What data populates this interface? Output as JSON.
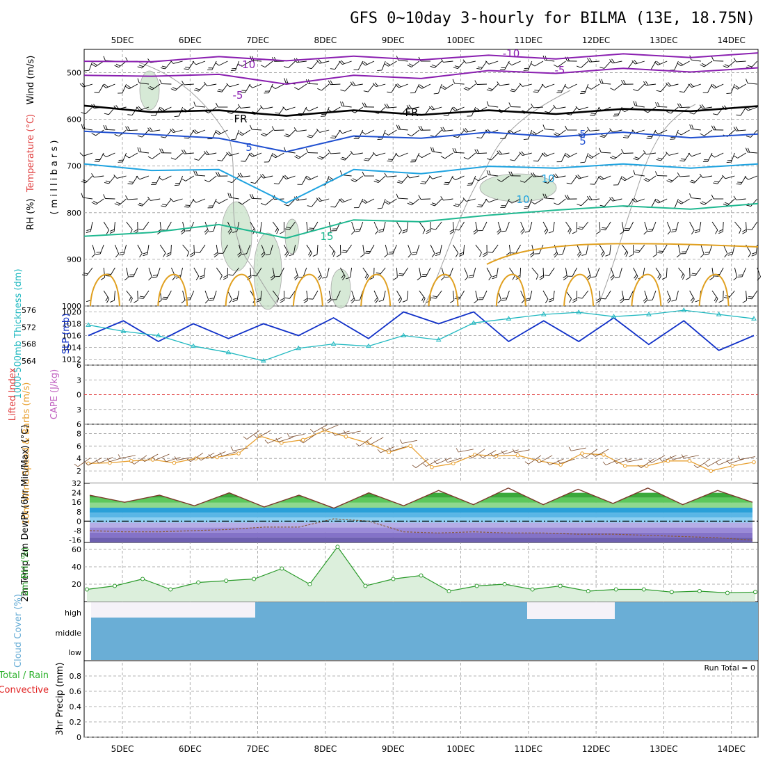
{
  "title": "GFS 0~10day 3-hourly for BILMA (13E, 18.75N)",
  "dates": [
    "5DEC",
    "6DEC",
    "7DEC",
    "8DEC",
    "9DEC",
    "10DEC",
    "11DEC",
    "12DEC",
    "13DEC",
    "14DEC"
  ],
  "colors": {
    "wind_barb": "#000000",
    "temp_m10": "#8a1fb0",
    "temp_m5": "#8a1fb0",
    "temp_fr": "#000000",
    "temp_5": "#1f4fd0",
    "temp_10": "#1fa3e0",
    "temp_15": "#1fb890",
    "temp_warm": "#e0a020",
    "rh_shade": "#cfe6cf",
    "slp": "#1030c8",
    "thickness": "#20b8c0",
    "lifted_index": "#e04040",
    "wind_speed": "#e8a030",
    "rh2m": "#2a9a2a",
    "cloud": "#6aaed6",
    "precip_total": "#2ab02a",
    "precip_conv": "#e02020"
  },
  "chart_data": [
    {
      "type": "line",
      "panel": "upper-air",
      "ylabel_parts": [
        "RH (%)",
        "Temperature (°C)",
        "Wind (m/s)",
        "( m i l l i b a r s )"
      ],
      "y_ticks": [
        "500",
        "600",
        "700",
        "800",
        "900",
        "1000"
      ],
      "ylim": [
        450,
        1000
      ],
      "y_inverted": true,
      "contour_labels": [
        "-10",
        "-10",
        "-5",
        "-5",
        "FR",
        "FR",
        "5",
        "5",
        "5",
        "10",
        "10",
        "15"
      ],
      "series": [
        {
          "name": "-10",
          "level": [
            480,
            472,
            470,
            470,
            469,
            468,
            467,
            466,
            464,
            463,
            462
          ]
        },
        {
          "name": "-5",
          "level": [
            510,
            503,
            508,
            520,
            510,
            508,
            500,
            497,
            495,
            494,
            494
          ]
        },
        {
          "name": "FR",
          "level": [
            575,
            580,
            585,
            588,
            585,
            586,
            585,
            584,
            582,
            578,
            576
          ]
        },
        {
          "name": "5",
          "level": [
            630,
            628,
            645,
            665,
            640,
            636,
            632,
            633,
            632,
            635,
            636
          ]
        },
        {
          "name": "10",
          "level": [
            700,
            705,
            712,
            775,
            712,
            712,
            705,
            700,
            700,
            700,
            700
          ]
        },
        {
          "name": "15",
          "level": [
            855,
            838,
            830,
            850,
            820,
            815,
            810,
            790,
            790,
            788,
            785
          ]
        }
      ]
    },
    {
      "type": "line",
      "panel": "slp-thickness",
      "ylabel_left": "1000-500mb Thickness (dm)",
      "ylabel_right": "SLP (mb)",
      "left_ticks": [
        "564",
        "568",
        "572",
        "576"
      ],
      "right_ticks": [
        "1012",
        "1014",
        "1016",
        "1018",
        "1020"
      ],
      "ylim_slp": [
        1011,
        1021
      ],
      "ylim_thickness": [
        563,
        577
      ],
      "x_hours": [
        0,
        12,
        24,
        36,
        48,
        60,
        72,
        84,
        96,
        108,
        120,
        132,
        144,
        156,
        168,
        180,
        192,
        204,
        216,
        228
      ],
      "series": [
        {
          "name": "SLP",
          "values": [
            1016,
            1018.5,
            1015,
            1018,
            1015.5,
            1018,
            1016,
            1019,
            1015.5,
            1020,
            1018,
            1020,
            1015,
            1018.5,
            1015,
            1019,
            1014.5,
            1018.5,
            1013.5,
            1016
          ]
        },
        {
          "name": "Thickness",
          "values": [
            572.5,
            571,
            570,
            567.5,
            566,
            564,
            567,
            568,
            567.5,
            570,
            569,
            573,
            574,
            575,
            575.5,
            574.5,
            575,
            576,
            575,
            574
          ]
        }
      ]
    },
    {
      "type": "line",
      "panel": "stability",
      "ylabel_left": "Lifted Index",
      "ylabel_right": "CAPE (J/kg)",
      "y_ticks": [
        "-6",
        "-3",
        "0",
        "3",
        "6"
      ],
      "ylim": [
        -6,
        6
      ],
      "series": [
        {
          "name": "Lifted Index",
          "values": [
            0,
            0,
            0,
            0,
            0,
            0,
            0,
            0,
            0,
            0
          ]
        }
      ]
    },
    {
      "type": "line",
      "panel": "10m-wind",
      "ylabel": "10m Wind Speed & Barbs (m/s)",
      "y_ticks": [
        "2",
        "4",
        "6",
        "8"
      ],
      "ylim": [
        0,
        9.5
      ],
      "series": [
        {
          "name": "Wind Speed",
          "values": [
            3.2,
            3.3,
            3.6,
            3.8,
            3.3,
            4.0,
            4.2,
            4.8,
            7.6,
            6.5,
            7.0,
            8.5,
            7.5,
            6.5,
            5.0,
            6.0,
            2.6,
            3.2,
            4.6,
            4.4,
            4.5,
            3.6,
            3.0,
            4.8,
            4.6,
            2.8,
            2.8,
            3.6,
            3.6,
            2.0,
            2.8,
            3.4
          ]
        }
      ]
    },
    {
      "type": "area",
      "panel": "2m-temp",
      "ylabel": "2m Temp 2m DewPt (6hr Min/Max) (°C)",
      "y_ticks": [
        "-16",
        "-8",
        "0",
        "8",
        "16",
        "24",
        "32"
      ],
      "ylim": [
        -18,
        32
      ],
      "series": [
        {
          "name": "Temp",
          "values": [
            22,
            16,
            22,
            13,
            24,
            12,
            22,
            11,
            24,
            13,
            26,
            14,
            28,
            14,
            27,
            15,
            28,
            14,
            26,
            16
          ]
        },
        {
          "name": "DewPt",
          "values": [
            -8,
            -9,
            -9,
            -8,
            -7,
            -5,
            -5,
            2,
            0,
            -9,
            -10,
            -9,
            -10,
            -10,
            -11,
            -11,
            -12,
            -13,
            -14,
            -16
          ]
        }
      ]
    },
    {
      "type": "area",
      "panel": "2m-rh",
      "ylabel": "2m RH (%)",
      "y_ticks": [
        "20",
        "40",
        "60"
      ],
      "ylim": [
        0,
        68
      ],
      "series": [
        {
          "name": "RH",
          "values": [
            14,
            18,
            26,
            14,
            22,
            24,
            26,
            38,
            20,
            63,
            18,
            26,
            30,
            12,
            18,
            20,
            14,
            18,
            12,
            14,
            14,
            11,
            12,
            10,
            11
          ]
        }
      ]
    },
    {
      "type": "heatmap",
      "panel": "cloud-cover",
      "ylabel": "Cloud Cover (%)",
      "y_ticks": [
        "high",
        "middle",
        "low"
      ]
    },
    {
      "type": "bar",
      "panel": "precip",
      "ylabel_parts": [
        "Total / Rain",
        "Convective",
        "3hr Precip (mm)"
      ],
      "y_ticks": [
        "0",
        "0.2",
        "0.4",
        "0.6",
        "0.8"
      ],
      "ylim": [
        0,
        1
      ],
      "annotation": "Run Total = 0",
      "values": [
        0,
        0,
        0,
        0,
        0,
        0,
        0,
        0,
        0,
        0
      ]
    }
  ]
}
